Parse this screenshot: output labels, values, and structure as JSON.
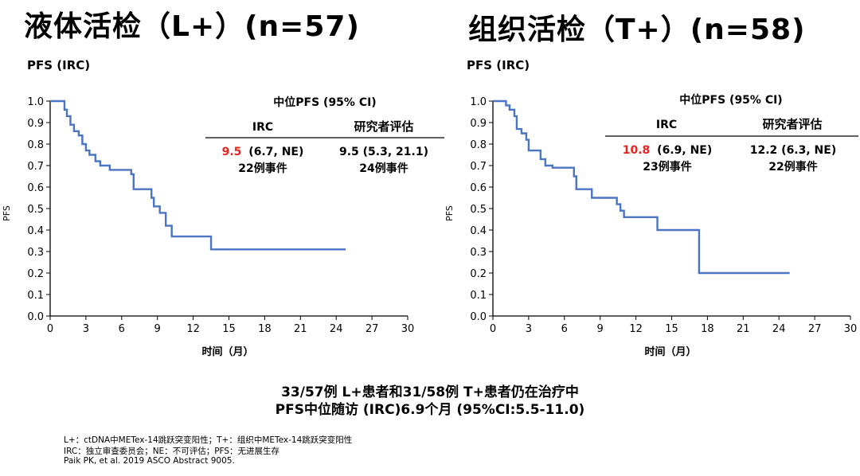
{
  "titles": {
    "left": "液体活检（L+）(n=57)",
    "right": "组织活检（T+）(n=58)"
  },
  "colors": {
    "curve": "#4a74c4",
    "highlight": "#e8231f",
    "axis": "#000000"
  },
  "chart_data": [
    {
      "type": "line",
      "title": "液体活检（L+）(n=57)",
      "corner_label": "PFS (IRC)",
      "ylabel": "PFS",
      "xlabel": "时间（月）",
      "xlim": [
        0,
        30
      ],
      "ylim": [
        0,
        1
      ],
      "xticks": [
        "0",
        "3",
        "6",
        "9",
        "12",
        "15",
        "18",
        "21",
        "24",
        "27",
        "30"
      ],
      "yticks": [
        "0.0",
        "0.1",
        "0.2",
        "0.3",
        "0.4",
        "0.5",
        "0.6",
        "0.7",
        "0.8",
        "0.9",
        "1.0"
      ],
      "series": [
        {
          "step": true,
          "x": [
            0,
            1.2,
            1.4,
            1.7,
            2.0,
            2.4,
            2.7,
            3.0,
            3.3,
            3.8,
            4.2,
            5.0,
            6.8,
            7.0,
            8.5,
            8.7,
            9.2,
            9.7,
            10.2,
            13.5,
            24.8
          ],
          "y": [
            1.0,
            0.96,
            0.93,
            0.89,
            0.86,
            0.84,
            0.8,
            0.77,
            0.75,
            0.72,
            0.7,
            0.68,
            0.66,
            0.59,
            0.55,
            0.51,
            0.48,
            0.42,
            0.37,
            0.31,
            0.31
          ]
        }
      ],
      "ci_table": {
        "heading": "中位PFS (95% CI)",
        "col1_label": "IRC",
        "col2_label": "研究者评估",
        "irc_median": "9.5",
        "irc_ci": "(6.7, NE)",
        "irc_events": "22例事件",
        "inv_value": "9.5 (5.3, 21.1)",
        "inv_events": "24例事件"
      }
    },
    {
      "type": "line",
      "title": "组织活检（T+）(n=58)",
      "corner_label": "PFS (IRC)",
      "ylabel": "PFS",
      "xlabel": "时间（月）",
      "xlim": [
        0,
        30
      ],
      "ylim": [
        0,
        1
      ],
      "xticks": [
        "0",
        "3",
        "6",
        "9",
        "12",
        "15",
        "18",
        "21",
        "24",
        "27",
        "30"
      ],
      "yticks": [
        "0.0",
        "0.1",
        "0.2",
        "0.3",
        "0.4",
        "0.5",
        "0.6",
        "0.7",
        "0.8",
        "0.9",
        "1.0"
      ],
      "series": [
        {
          "step": true,
          "x": [
            0,
            1.1,
            1.4,
            1.8,
            2.0,
            2.4,
            2.8,
            3.0,
            4.0,
            4.4,
            5.0,
            6.8,
            7.0,
            8.3,
            10.4,
            10.7,
            11.0,
            13.8,
            17.3,
            24.9
          ],
          "y": [
            1.0,
            0.98,
            0.96,
            0.93,
            0.87,
            0.85,
            0.82,
            0.77,
            0.73,
            0.7,
            0.69,
            0.65,
            0.59,
            0.55,
            0.52,
            0.49,
            0.46,
            0.4,
            0.2,
            0.2
          ]
        }
      ],
      "ci_table": {
        "heading": "中位PFS (95% CI)",
        "col1_label": "IRC",
        "col2_label": "研究者评估",
        "irc_median": "10.8",
        "irc_ci": "(6.9, NE)",
        "irc_events": "23例事件",
        "inv_value": "12.2 (6.3, NE)",
        "inv_events": "22例事件"
      }
    }
  ],
  "summary": {
    "line1": "33/57例 L+患者和31/58例 T+患者仍在治疗中",
    "line2": "PFS中位随访 (IRC)6.9个月 (95%CI:5.5-11.0)"
  },
  "footnotes": {
    "line1": "L+：ctDNA中METex-14跳跃突变阳性；T+：组织中METex-14跳跃突变阳性",
    "line2": "IRC：独立审查委员会；NE：不可评估；PFS：无进展生存",
    "line3": "Paik PK, et al. 2019 ASCO Abstract 9005."
  }
}
